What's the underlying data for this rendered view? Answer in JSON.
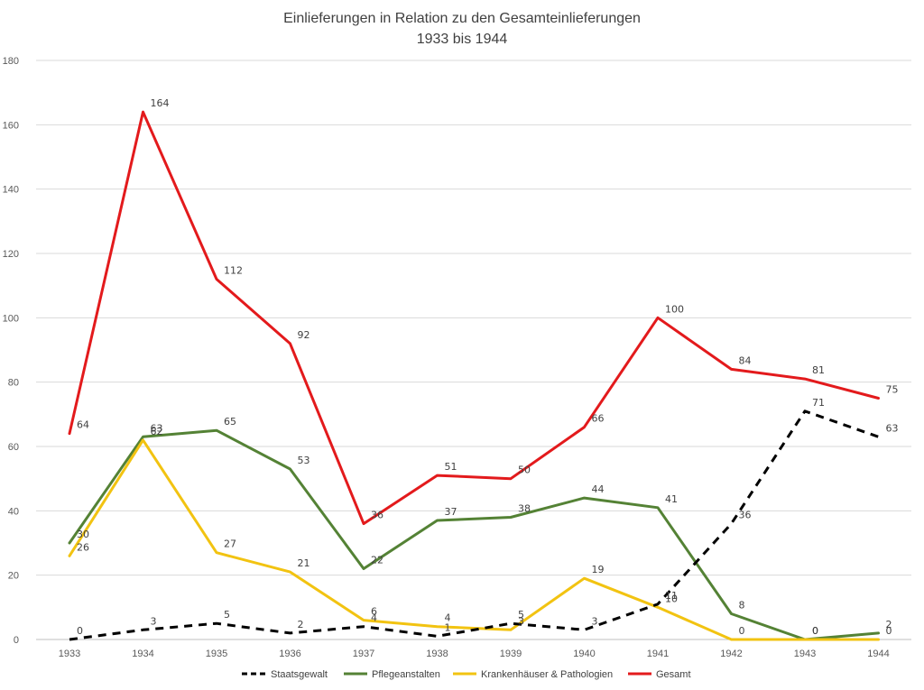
{
  "chart_data": {
    "type": "line",
    "title": [
      "Einlieferungen in Relation zu den Gesamteinlieferungen",
      "1933 bis 1944"
    ],
    "xlabel": "",
    "ylabel": "",
    "ylim": [
      0,
      180
    ],
    "yticks": [
      0,
      20,
      40,
      60,
      80,
      100,
      120,
      140,
      160,
      180
    ],
    "categories": [
      "1933",
      "1934",
      "1935",
      "1936",
      "1937",
      "1938",
      "1939",
      "1940",
      "1941",
      "1942",
      "1943",
      "1944"
    ],
    "grid": "horizontal",
    "legend_position": "bottom",
    "series": [
      {
        "name": "Staatsgewalt",
        "color": "#000000",
        "dashed": true,
        "values": [
          0,
          3,
          5,
          2,
          4,
          1,
          5,
          3,
          11,
          36,
          71,
          63
        ]
      },
      {
        "name": "Pflegeanstalten",
        "color": "#548235",
        "dashed": false,
        "values": [
          30,
          63,
          65,
          53,
          22,
          37,
          38,
          44,
          41,
          8,
          0,
          2
        ]
      },
      {
        "name": "Krankenhäuser & Pathologien",
        "color": "#F2C311",
        "dashed": false,
        "values": [
          26,
          62,
          27,
          21,
          6,
          4,
          3,
          19,
          10,
          0,
          0,
          0
        ]
      },
      {
        "name": "Gesamt",
        "color": "#E31A1C",
        "dashed": false,
        "values": [
          64,
          164,
          112,
          92,
          36,
          51,
          50,
          66,
          100,
          84,
          81,
          75
        ]
      }
    ]
  }
}
